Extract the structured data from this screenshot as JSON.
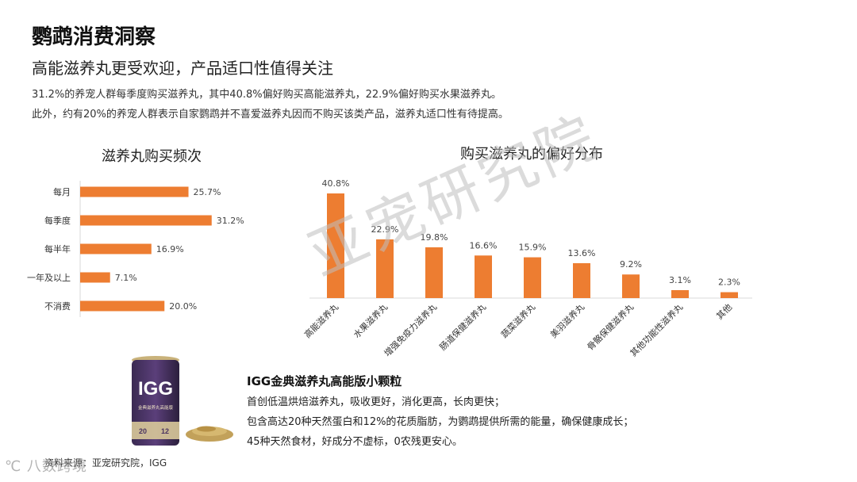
{
  "header": {
    "title": "鹦鹉消费洞察",
    "subtitle": "高能滋养丸更受欢迎，产品适口性值得关注",
    "desc_line1": "31.2%的养宠人群每季度购买滋养丸，其中40.8%偏好购买高能滋养丸，22.9%偏好购买水果滋养丸。",
    "desc_line2": "此外，约有20%的养宠人群表示自家鹦鹉并不喜爱滋养丸因而不购买该类产品，滋养丸适口性有待提高。"
  },
  "watermark": "亚宠研究院",
  "colors": {
    "bar": "#ed7d31",
    "axis": "#d9d9d9"
  },
  "chart_data": [
    {
      "type": "bar",
      "orientation": "horizontal",
      "title": "滋养丸购买频次",
      "categories": [
        "每月",
        "每季度",
        "每半年",
        "一年及以上",
        "不消费"
      ],
      "values": [
        25.7,
        31.2,
        16.9,
        7.1,
        20.0
      ],
      "labels": [
        "25.7%",
        "31.2%",
        "16.9%",
        "7.1%",
        "20.0%"
      ],
      "xlim": [
        0,
        32
      ],
      "grid": false,
      "legend": "none"
    },
    {
      "type": "bar",
      "orientation": "vertical",
      "title": "购买滋养丸的偏好分布",
      "categories": [
        "高能滋养丸",
        "水果滋养丸",
        "增强免疫力滋养丸",
        "肠道保健滋养丸",
        "蔬菜滋养丸",
        "美羽滋养丸",
        "骨骼保健滋养丸",
        "其他功能性滋养丸",
        "其他"
      ],
      "values": [
        40.8,
        22.9,
        19.8,
        16.6,
        15.9,
        13.6,
        9.2,
        3.1,
        2.3
      ],
      "labels": [
        "40.8%",
        "22.9%",
        "19.8%",
        "16.6%",
        "15.9%",
        "13.6%",
        "9.2%",
        "3.1%",
        "2.3%"
      ],
      "ylim": [
        0,
        41
      ],
      "grid": false,
      "legend": "none"
    }
  ],
  "product": {
    "title": "IGG金典滋养丸高能版小颗粒",
    "line1": "首创低温烘焙滋养丸，吸收更好，消化更高，长肉更快；",
    "line2": "包含高达20种天然蛋白和12%的花质脂肪，为鹦鹉提供所需的能量，确保健康成长；",
    "line3": "45种天然食材，好成分不虚标，0农残更安心。",
    "can_brand": "IGG",
    "can_label": "金典滋养丸高能版",
    "can_weight": "20",
    "can_size": "12"
  },
  "source": "资料来源：亚宠研究院，IGG",
  "brand_mark": "℃ 八数跨境"
}
